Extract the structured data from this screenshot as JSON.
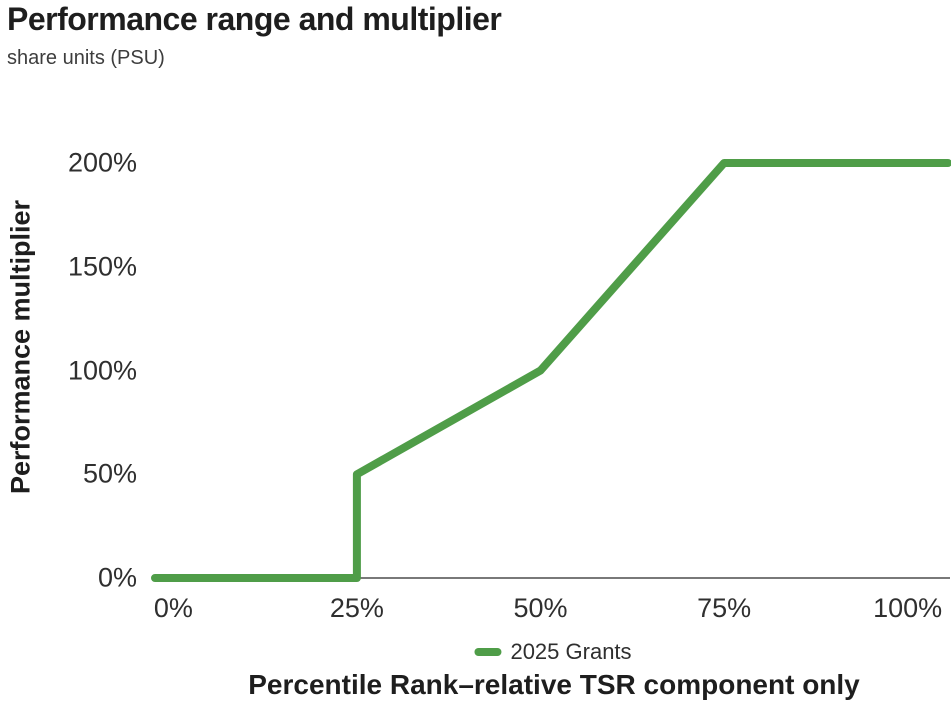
{
  "chart_data": {
    "type": "line",
    "title": "Performance range and multiplier",
    "subtitle": "share units (PSU)",
    "xlabel": "Percentile Rank–relative TSR component only",
    "ylabel": "Performance multiplier",
    "xlim": [
      -2.5,
      105.5
    ],
    "ylim": [
      0,
      200
    ],
    "grid": false,
    "legend_position": "bottom-center",
    "x_ticks": [
      {
        "value": 0,
        "label": "0%"
      },
      {
        "value": 25,
        "label": "25%"
      },
      {
        "value": 50,
        "label": "50%"
      },
      {
        "value": 75,
        "label": "75%"
      },
      {
        "value": 100,
        "label": "100%"
      }
    ],
    "y_ticks": [
      {
        "value": 0,
        "label": "0%"
      },
      {
        "value": 50,
        "label": "50%"
      },
      {
        "value": 100,
        "label": "100%"
      },
      {
        "value": 150,
        "label": "150%"
      },
      {
        "value": 200,
        "label": "200%"
      }
    ],
    "series": [
      {
        "name": "2025 Grants",
        "color": "#4f9d48",
        "line_width": 8,
        "extend_to_plot_edges": true,
        "points": [
          [
            0,
            0
          ],
          [
            25,
            0
          ],
          [
            25,
            50
          ],
          [
            50,
            100
          ],
          [
            75,
            200
          ],
          [
            100,
            200
          ]
        ]
      }
    ],
    "axis_color": "#4d4d4d"
  }
}
